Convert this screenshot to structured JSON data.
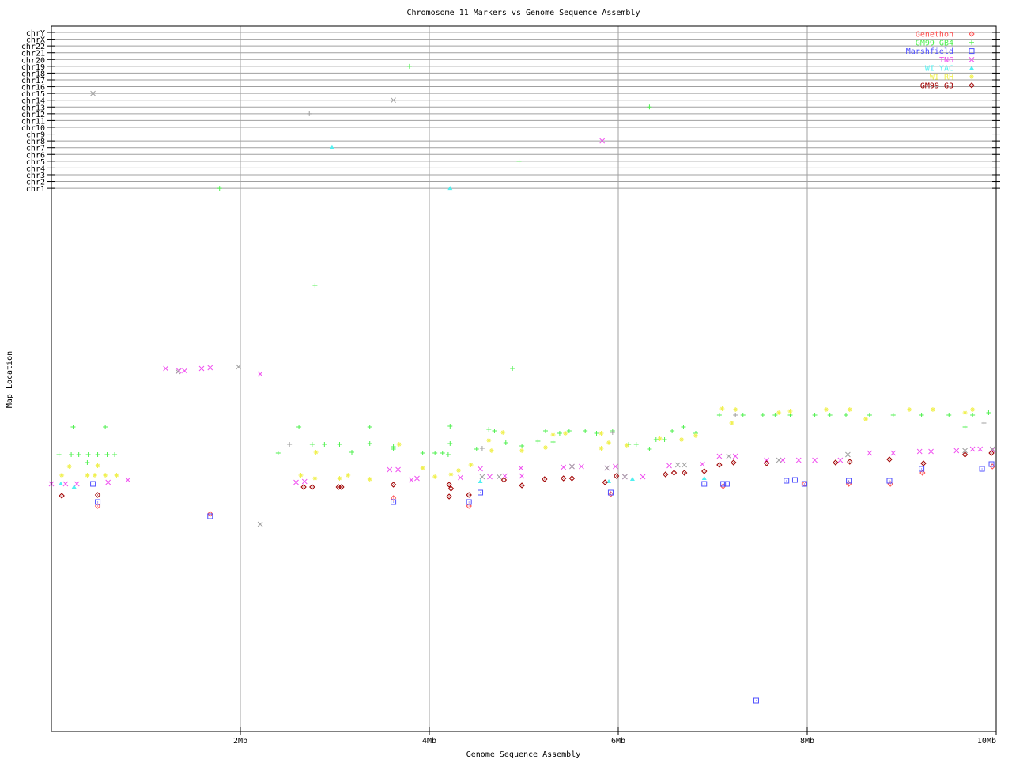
{
  "chart_data": {
    "type": "scatter",
    "title": "Chromosome 11 Markers vs Genome Sequence Assembly",
    "xlabel": "Genome Sequence Assembly",
    "ylabel": "Map Location",
    "xlim": [
      0,
      10
    ],
    "x_unit": "Mb",
    "x_ticks": [
      {
        "v": 2,
        "label": "2Mb"
      },
      {
        "v": 4,
        "label": "4Mb"
      },
      {
        "v": 6,
        "label": "6Mb"
      },
      {
        "v": 8,
        "label": "8Mb"
      },
      {
        "v": 10,
        "label": "10Mb"
      }
    ],
    "map_ylim": [
      0,
      687
    ],
    "chromosome_rows": [
      "chrY",
      "chrX",
      "chr22",
      "chr21",
      "chr20",
      "chr19",
      "chr18",
      "chr17",
      "chr16",
      "chr15",
      "chr14",
      "chr13",
      "chr12",
      "chr11",
      "chr10",
      "chr9",
      "chr8",
      "chr7",
      "chr6",
      "chr5",
      "chr4",
      "chr3",
      "chr2",
      "chr1"
    ],
    "grid": true,
    "legend_position": "top-right",
    "series": [
      {
        "name": "Genethon",
        "color": "#ff5050",
        "marker": "diamond",
        "points": [
          [
            0.49,
            285
          ],
          [
            1.68,
            275
          ],
          [
            3.62,
            295
          ],
          [
            4.42,
            285
          ],
          [
            5.92,
            300
          ],
          [
            7.11,
            310
          ],
          [
            7.97,
            313
          ],
          [
            8.88,
            313
          ],
          [
            9.22,
            327
          ],
          [
            9.96,
            335
          ],
          [
            8.44,
            313
          ]
        ],
        "chr_points": []
      },
      {
        "name": "GM99 GB4",
        "color": "#50f050",
        "marker": "plus",
        "points": [
          [
            0.23,
            385
          ],
          [
            0.57,
            385
          ],
          [
            0.08,
            350
          ],
          [
            0.21,
            350
          ],
          [
            0.29,
            350
          ],
          [
            0.39,
            350
          ],
          [
            0.49,
            350
          ],
          [
            0.59,
            350
          ],
          [
            0.67,
            350
          ],
          [
            0.38,
            340
          ],
          [
            2.79,
            564
          ],
          [
            4.88,
            459
          ],
          [
            2.4,
            352
          ],
          [
            2.62,
            385
          ],
          [
            2.76,
            363
          ],
          [
            2.89,
            363
          ],
          [
            3.05,
            363
          ],
          [
            3.18,
            353
          ],
          [
            3.37,
            385
          ],
          [
            3.37,
            364
          ],
          [
            3.62,
            360
          ],
          [
            3.62,
            357
          ],
          [
            3.93,
            352
          ],
          [
            4.06,
            352
          ],
          [
            4.14,
            352
          ],
          [
            4.22,
            364
          ],
          [
            4.22,
            386
          ],
          [
            4.2,
            350
          ],
          [
            4.5,
            357
          ],
          [
            4.63,
            382
          ],
          [
            4.69,
            380
          ],
          [
            4.81,
            365
          ],
          [
            4.98,
            361
          ],
          [
            5.15,
            367
          ],
          [
            5.23,
            380
          ],
          [
            5.31,
            366
          ],
          [
            5.38,
            377
          ],
          [
            5.48,
            380
          ],
          [
            5.65,
            380
          ],
          [
            5.77,
            377
          ],
          [
            5.94,
            380
          ],
          [
            6.11,
            363
          ],
          [
            6.19,
            363
          ],
          [
            6.33,
            357
          ],
          [
            6.4,
            369
          ],
          [
            6.49,
            369
          ],
          [
            6.57,
            380
          ],
          [
            6.69,
            385
          ],
          [
            6.82,
            377
          ],
          [
            7.07,
            400
          ],
          [
            7.32,
            400
          ],
          [
            7.53,
            400
          ],
          [
            7.66,
            400
          ],
          [
            7.82,
            400
          ],
          [
            8.08,
            400
          ],
          [
            8.24,
            400
          ],
          [
            8.41,
            400
          ],
          [
            8.66,
            400
          ],
          [
            8.91,
            400
          ],
          [
            9.21,
            400
          ],
          [
            9.5,
            400
          ],
          [
            9.75,
            400
          ],
          [
            9.92,
            403
          ],
          [
            9.67,
            385
          ]
        ],
        "chr_points": [
          {
            "x": 1.78,
            "chr": "chr1"
          },
          {
            "x": 3.79,
            "chr": "chr19"
          },
          {
            "x": 6.33,
            "chr": "chr13"
          },
          {
            "x": 4.95,
            "chr": "chr5"
          }
        ]
      },
      {
        "name": "Marshfield",
        "color": "#5050ff",
        "marker": "square",
        "points": [
          [
            0.44,
            313
          ],
          [
            0.49,
            290
          ],
          [
            1.68,
            272
          ],
          [
            3.62,
            290
          ],
          [
            4.42,
            290
          ],
          [
            4.54,
            302
          ],
          [
            5.92,
            302
          ],
          [
            6.91,
            313
          ],
          [
            7.11,
            313
          ],
          [
            7.15,
            313
          ],
          [
            7.78,
            317
          ],
          [
            7.87,
            318
          ],
          [
            7.97,
            313
          ],
          [
            8.44,
            317
          ],
          [
            8.87,
            317
          ],
          [
            9.21,
            332
          ],
          [
            9.85,
            332
          ],
          [
            9.95,
            338
          ],
          [
            7.46,
            39
          ]
        ],
        "chr_points": []
      },
      {
        "name": "TNG",
        "color": "#f050f0",
        "marker": "x",
        "points": [
          [
            0.0,
            313
          ],
          [
            0.15,
            313
          ],
          [
            0.27,
            313
          ],
          [
            0.6,
            315
          ],
          [
            0.81,
            318
          ],
          [
            1.21,
            459
          ],
          [
            1.35,
            456
          ],
          [
            1.41,
            456
          ],
          [
            1.59,
            459
          ],
          [
            1.68,
            460
          ],
          [
            2.21,
            452
          ],
          [
            2.59,
            315
          ],
          [
            2.68,
            316
          ],
          [
            3.58,
            331
          ],
          [
            3.67,
            331
          ],
          [
            3.81,
            318
          ],
          [
            3.87,
            320
          ],
          [
            4.33,
            321
          ],
          [
            4.54,
            332
          ],
          [
            4.64,
            322
          ],
          [
            4.8,
            323
          ],
          [
            4.97,
            333
          ],
          [
            4.98,
            323
          ],
          [
            5.42,
            334
          ],
          [
            5.51,
            335
          ],
          [
            5.61,
            335
          ],
          [
            5.88,
            333
          ],
          [
            5.97,
            335
          ],
          [
            6.07,
            322
          ],
          [
            6.26,
            322
          ],
          [
            6.54,
            336
          ],
          [
            6.89,
            338
          ],
          [
            7.07,
            348
          ],
          [
            7.24,
            348
          ],
          [
            7.57,
            343
          ],
          [
            7.74,
            343
          ],
          [
            7.91,
            343
          ],
          [
            8.08,
            343
          ],
          [
            8.35,
            343
          ],
          [
            8.66,
            352
          ],
          [
            8.91,
            352
          ],
          [
            9.19,
            354
          ],
          [
            9.31,
            354
          ],
          [
            9.58,
            355
          ],
          [
            9.75,
            357
          ],
          [
            9.83,
            357
          ],
          [
            9.96,
            356
          ]
        ],
        "chr_points": [
          {
            "x": 5.83,
            "chr": "chr8"
          }
        ]
      },
      {
        "name": "WI YAC",
        "color": "#50f0f0",
        "marker": "triangle",
        "points": [
          [
            0.1,
            313
          ],
          [
            0.24,
            309
          ],
          [
            4.54,
            316
          ],
          [
            5.9,
            316
          ],
          [
            6.15,
            319
          ],
          [
            6.91,
            320
          ]
        ],
        "chr_points": [
          {
            "x": 2.97,
            "chr": "chr7"
          },
          {
            "x": 4.22,
            "chr": "chr1"
          }
        ]
      },
      {
        "name": "WI RH",
        "color": "#f0f050",
        "marker": "star",
        "points": [
          [
            0.19,
            335
          ],
          [
            0.11,
            324
          ],
          [
            0.38,
            324
          ],
          [
            0.46,
            324
          ],
          [
            0.57,
            324
          ],
          [
            0.69,
            324
          ],
          [
            0.49,
            336
          ],
          [
            2.64,
            324
          ],
          [
            2.79,
            320
          ],
          [
            2.8,
            353
          ],
          [
            3.05,
            320
          ],
          [
            3.14,
            324
          ],
          [
            3.37,
            319
          ],
          [
            3.68,
            363
          ],
          [
            3.93,
            333
          ],
          [
            4.06,
            322
          ],
          [
            4.23,
            325
          ],
          [
            4.31,
            330
          ],
          [
            4.44,
            337
          ],
          [
            4.63,
            368
          ],
          [
            4.78,
            378
          ],
          [
            4.66,
            355
          ],
          [
            4.98,
            355
          ],
          [
            5.23,
            359
          ],
          [
            5.31,
            375
          ],
          [
            5.44,
            377
          ],
          [
            5.82,
            358
          ],
          [
            5.9,
            365
          ],
          [
            5.82,
            377
          ],
          [
            6.09,
            362
          ],
          [
            6.44,
            370
          ],
          [
            6.67,
            369
          ],
          [
            6.82,
            374
          ],
          [
            7.1,
            408
          ],
          [
            7.24,
            407
          ],
          [
            7.2,
            390
          ],
          [
            7.7,
            403
          ],
          [
            7.82,
            405
          ],
          [
            8.2,
            407
          ],
          [
            8.45,
            407
          ],
          [
            8.62,
            395
          ],
          [
            9.08,
            407
          ],
          [
            9.33,
            407
          ],
          [
            9.67,
            403
          ],
          [
            9.75,
            407
          ]
        ],
        "chr_points": []
      },
      {
        "name": "GM99 G3",
        "color": "#a00000",
        "marker": "diamond",
        "points": [
          [
            0.11,
            298
          ],
          [
            0.49,
            299
          ],
          [
            2.67,
            309
          ],
          [
            2.76,
            309
          ],
          [
            3.04,
            309
          ],
          [
            3.07,
            309
          ],
          [
            3.62,
            312
          ],
          [
            4.21,
            312
          ],
          [
            4.23,
            307
          ],
          [
            4.21,
            297
          ],
          [
            4.42,
            299
          ],
          [
            4.79,
            318
          ],
          [
            4.98,
            311
          ],
          [
            5.22,
            319
          ],
          [
            5.42,
            320
          ],
          [
            5.51,
            320
          ],
          [
            5.86,
            315
          ],
          [
            5.98,
            323
          ],
          [
            6.59,
            327
          ],
          [
            6.7,
            327
          ],
          [
            6.91,
            329
          ],
          [
            7.07,
            337
          ],
          [
            7.22,
            340
          ],
          [
            7.57,
            339
          ],
          [
            8.3,
            340
          ],
          [
            8.45,
            341
          ],
          [
            8.87,
            344
          ],
          [
            9.23,
            339
          ],
          [
            9.67,
            350
          ],
          [
            9.95,
            352
          ],
          [
            6.5,
            325
          ]
        ],
        "chr_points": []
      },
      {
        "color": "#a0a0a0",
        "marker": "x",
        "points": [
          [
            1.98,
            461
          ],
          [
            2.21,
            262
          ],
          [
            1.34,
            455
          ],
          [
            4.56,
            322
          ],
          [
            4.74,
            322
          ],
          [
            5.51,
            335
          ],
          [
            5.88,
            333
          ],
          [
            6.07,
            322
          ],
          [
            6.63,
            337
          ],
          [
            6.7,
            337
          ],
          [
            7.17,
            348
          ],
          [
            7.7,
            343
          ],
          [
            8.43,
            350
          ],
          [
            9.67,
            355
          ],
          [
            9.96,
            357
          ]
        ],
        "chr_points": [
          {
            "x": 0.44,
            "chr": "chr15"
          },
          {
            "x": 3.62,
            "chr": "chr14"
          }
        ]
      },
      {
        "color": "#a0a0a0",
        "marker": "plus",
        "points": [
          [
            9.87,
            390
          ],
          [
            2.52,
            363
          ],
          [
            4.56,
            358
          ],
          [
            7.24,
            400
          ],
          [
            5.94,
            378
          ]
        ],
        "chr_points": [
          {
            "x": 2.73,
            "chr": "chr12"
          }
        ]
      }
    ]
  }
}
